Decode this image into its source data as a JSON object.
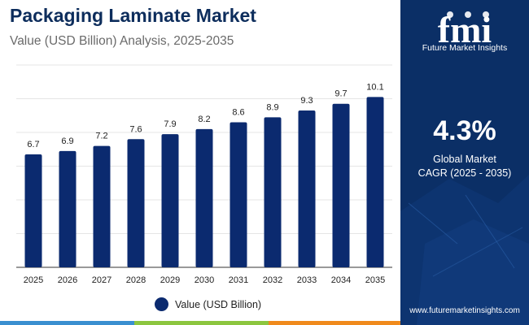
{
  "header": {
    "title": "Packaging Laminate Market",
    "subtitle": "Value (USD Billion) Analysis, 2025-2035"
  },
  "chart_data": {
    "type": "bar",
    "title": "Packaging Laminate Market",
    "categories": [
      "2025",
      "2026",
      "2027",
      "2028",
      "2029",
      "2030",
      "2031",
      "2032",
      "2033",
      "2034",
      "2035"
    ],
    "series": [
      {
        "name": "Value (USD Billion)",
        "values": [
          6.7,
          6.9,
          7.2,
          7.6,
          7.9,
          8.2,
          8.6,
          8.9,
          9.3,
          9.7,
          10.1
        ]
      }
    ],
    "data_labels": [
      "6.7",
      "6.9",
      "7.2",
      "7.6",
      "7.9",
      "8.2",
      "8.6",
      "8.9",
      "9.3",
      "9.7",
      "10.1"
    ],
    "xlabel": "",
    "ylabel": "",
    "ylim": [
      0,
      12
    ],
    "grid": true,
    "legend": "bottom-center",
    "bar_color": "#0b2a6f"
  },
  "legend": {
    "label": "Value (USD Billion)"
  },
  "sidebar": {
    "logo_mark": "fmi",
    "brand_name": "Future Market Insights",
    "cagr_value": "4.3%",
    "cagr_line1": "Global Market",
    "cagr_line2": "CAGR (2025 - 2035)",
    "website": "www.futuremarketinsights.com",
    "background_color": "#0b2f66"
  },
  "bottom_bar_colors": [
    "#3a8fd0",
    "#8cc63f",
    "#f08a1c",
    "#7b3fa0",
    "#0b2f66"
  ]
}
